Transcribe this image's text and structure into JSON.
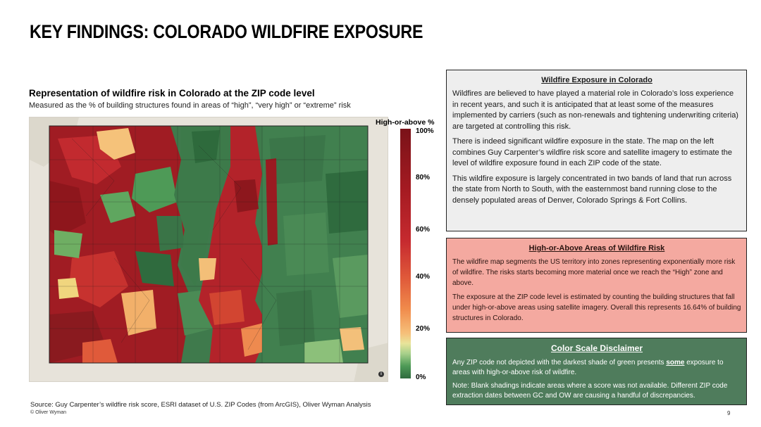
{
  "slide": {
    "title": "KEY FINDINGS: COLORADO WILDFIRE EXPOSURE",
    "page_number": "9"
  },
  "map": {
    "title": "Representation of wildfire risk in Colorado at the ZIP code level",
    "subtitle": "Measured as the % of building structures found in areas of “high”, “very high” or “extreme” risk",
    "info_icon_glyph": "i"
  },
  "legend": {
    "title": "High-or-above %",
    "ticks": [
      "100%",
      "80%",
      "60%",
      "40%",
      "20%",
      "0%"
    ],
    "colors": {
      "high": "#7a1218",
      "mid": "#f08a4b",
      "low": "#2f6b3e"
    }
  },
  "footer": {
    "source": "Source: Guy Carpenter’s wildfire risk score, ESRI dataset of U.S. ZIP Codes (from ArcGIS), Oliver Wyman Analysis",
    "copyright": "© Oliver Wyman"
  },
  "panels": {
    "exposure": {
      "heading": "Wildfire Exposure in Colorado",
      "paragraphs": [
        "Wildfires are believed to have played a material role in Colorado’s loss experience in recent years, and such it is anticipated that at least some of the measures implemented by carriers (such as non-renewals and tightening underwriting criteria) are targeted at controlling this risk.",
        "There is indeed significant wildfire exposure in the state. The map on the left combines Guy Carpenter’s wildfire risk score and satellite imagery to estimate the level of wildfire exposure found in each ZIP code of the state.",
        "This wildfire exposure is largely concentrated in two bands of land that run across the state from North to South, with the easternmost band running close to the densely populated areas of Denver, Colorado Springs & Fort Collins."
      ]
    },
    "high_areas": {
      "heading": "High-or-Above Areas of Wildfire Risk",
      "paragraphs": [
        "The wildfire map segments the US territory into zones representing exponentially more risk of wildfire. The risks starts becoming more material once we reach the “High” zone and above.",
        "The exposure at the ZIP code level is estimated by counting the building structures that fall under high-or-above areas using satellite imagery. Overall this represents 16.64% of building structures in Colorado."
      ]
    },
    "disclaimer": {
      "heading": "Color Scale Disclaimer",
      "p1_before": "Any ZIP code not depicted with the darkest shade of green presents ",
      "p1_emph": "some",
      "p1_after": " exposure to areas with high-or-above risk of wildfire.",
      "p2": "Note: Blank shadings indicate areas where a score was not available. Different ZIP code extraction dates between GC and OW are causing a handful of discrepancies."
    }
  }
}
